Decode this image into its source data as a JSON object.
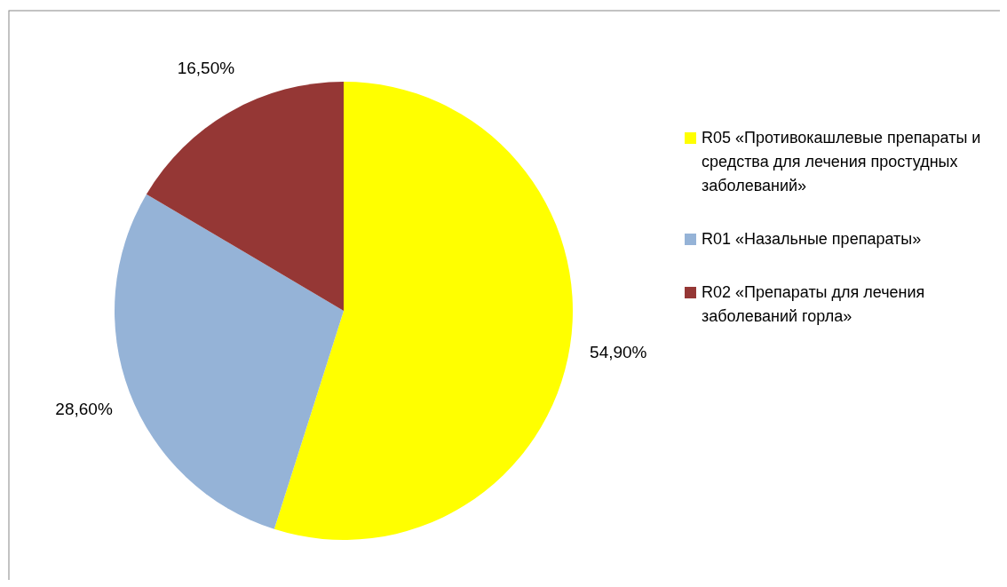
{
  "chart_data": {
    "type": "pie",
    "categories": [
      "R05 «Противокашлевые препараты и средства для лечения простудных заболеваний»",
      "R01 «Назальные препараты»",
      "R02 «Препараты для лечения заболеваний горла»"
    ],
    "values": [
      54.9,
      28.6,
      16.5
    ],
    "colors": [
      "#ffff00",
      "#95b3d7",
      "#953735"
    ],
    "value_labels": [
      "54,90%",
      "28,60%",
      "16,50%"
    ],
    "legend": "right"
  }
}
